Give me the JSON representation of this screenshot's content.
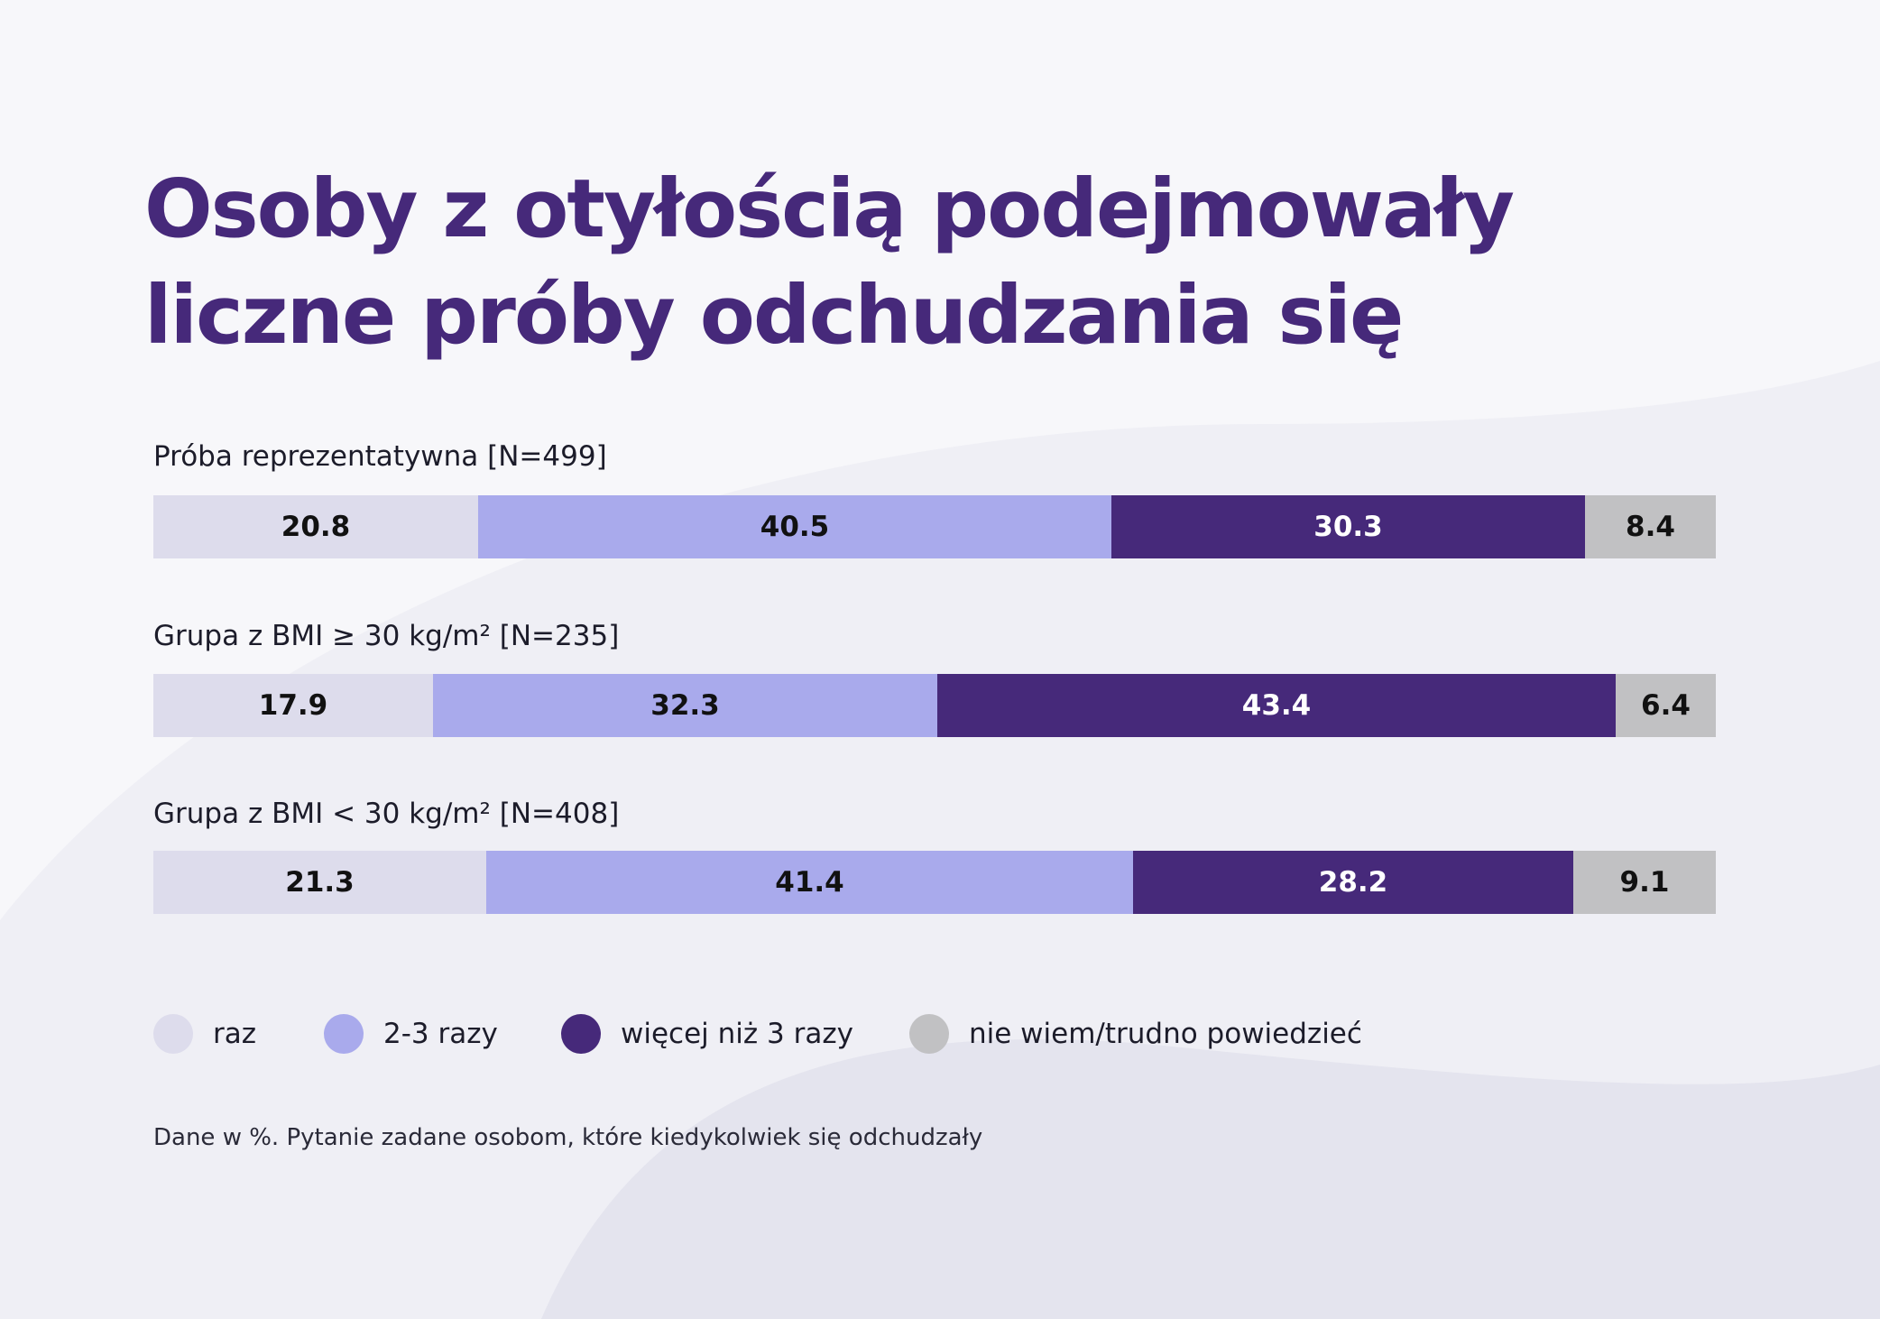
{
  "colors": {
    "title": "#46297a",
    "raz": "#dddcec",
    "razy_2_3": "#a9aaec",
    "wiecej_niz_3": "#46297a",
    "nie_wiem": "#c1c1c3"
  },
  "chart_data": {
    "type": "bar",
    "orientation": "horizontal",
    "stacked": true,
    "title": "Osoby z otyłością podejmowały liczne próby odchudzania się",
    "title_lines": [
      "Osoby z otyłością podejmowały",
      "liczne próby odchudzania się"
    ],
    "categories": [
      "Próba reprezentatywna [N=499]",
      "Grupa z BMI ≥ 30 kg/m² [N=235]",
      "Grupa z BMI < 30 kg/m² [N=408]"
    ],
    "series": [
      {
        "name": "raz",
        "color": "#dddcec",
        "label_color": "#111111",
        "values": [
          20.8,
          17.9,
          21.3
        ]
      },
      {
        "name": "2-3 razy",
        "color": "#a9aaec",
        "label_color": "#111111",
        "values": [
          40.5,
          32.3,
          41.4
        ]
      },
      {
        "name": "więcej niż 3 razy",
        "color": "#46297a",
        "label_color": "#ffffff",
        "values": [
          30.3,
          43.4,
          28.2
        ]
      },
      {
        "name": "nie wiem/trudno powiedzieć",
        "color": "#c1c1c3",
        "label_color": "#111111",
        "values": [
          8.4,
          6.4,
          9.1
        ]
      }
    ],
    "xlim": [
      0,
      100
    ],
    "legend_position": "bottom",
    "note": "Dane w %. Pytanie zadane osobom, które kiedykolwiek się odchudzały"
  }
}
